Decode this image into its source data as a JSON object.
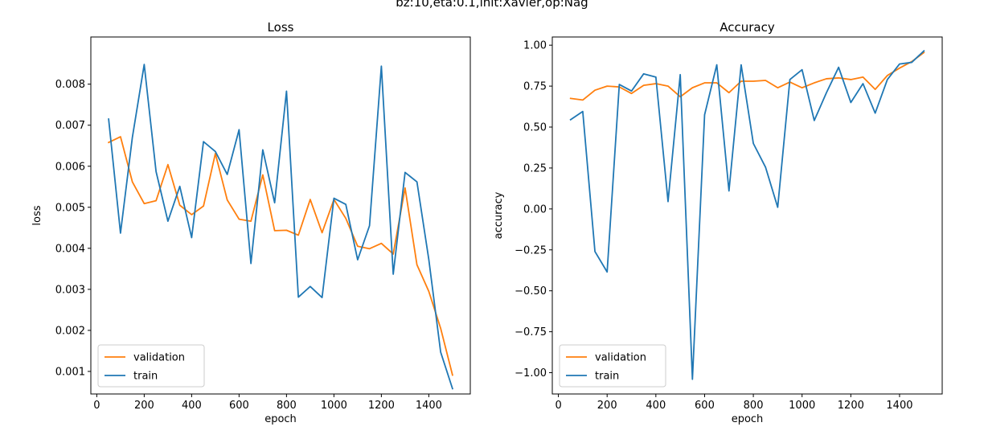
{
  "figure": {
    "suptitle": "bz:10,eta:0.1,init:Xavier,op:Nag"
  },
  "colors": {
    "validation": "#ff7f0e",
    "train": "#1f77b4"
  },
  "chart_data": [
    {
      "type": "line",
      "title": "Loss",
      "xlabel": "epoch",
      "ylabel": "loss",
      "xlim": [
        -25,
        1575
      ],
      "ylim": [
        0.00045,
        0.00915
      ],
      "xticks": [
        0,
        200,
        400,
        600,
        800,
        1000,
        1200,
        1400
      ],
      "yticks": [
        0.001,
        0.002,
        0.003,
        0.004,
        0.005,
        0.006,
        0.007,
        0.008
      ],
      "xtick_labels": [
        "0",
        "200",
        "400",
        "600",
        "800",
        "1000",
        "1200",
        "1400"
      ],
      "ytick_labels": [
        "0.001",
        "0.002",
        "0.003",
        "0.004",
        "0.005",
        "0.006",
        "0.007",
        "0.008"
      ],
      "legend_position": "lower-left",
      "grid": false,
      "x": [
        50,
        100,
        150,
        200,
        250,
        300,
        350,
        400,
        450,
        500,
        550,
        600,
        650,
        700,
        750,
        800,
        850,
        900,
        950,
        1000,
        1050,
        1100,
        1150,
        1200,
        1250,
        1300,
        1350,
        1400,
        1450,
        1500
      ],
      "series": [
        {
          "name": "validation",
          "color": "#ff7f0e",
          "values": [
            0.00658,
            0.00672,
            0.00562,
            0.00509,
            0.00516,
            0.00604,
            0.00505,
            0.00482,
            0.00503,
            0.00631,
            0.00518,
            0.00471,
            0.00466,
            0.00579,
            0.00443,
            0.00444,
            0.00432,
            0.00519,
            0.00438,
            0.00519,
            0.00473,
            0.00405,
            0.00399,
            0.00412,
            0.00386,
            0.00547,
            0.0036,
            0.00295,
            0.00205,
            0.00091
          ]
        },
        {
          "name": "train",
          "color": "#1f77b4",
          "values": [
            0.00715,
            0.00437,
            0.0067,
            0.00848,
            0.00587,
            0.00466,
            0.00551,
            0.00426,
            0.0066,
            0.00636,
            0.0058,
            0.00689,
            0.00363,
            0.0064,
            0.00511,
            0.00783,
            0.00281,
            0.00307,
            0.0028,
            0.00522,
            0.00507,
            0.00372,
            0.00455,
            0.00844,
            0.00337,
            0.00585,
            0.00562,
            0.00373,
            0.00147,
            0.00058
          ]
        }
      ]
    },
    {
      "type": "line",
      "title": "Accuracy",
      "xlabel": "epoch",
      "ylabel": "accuracy",
      "xlim": [
        -25,
        1575
      ],
      "ylim": [
        -1.13,
        1.05
      ],
      "xticks": [
        0,
        200,
        400,
        600,
        800,
        1000,
        1200,
        1400
      ],
      "yticks": [
        -1.0,
        -0.75,
        -0.5,
        -0.25,
        0.0,
        0.25,
        0.5,
        0.75,
        1.0
      ],
      "xtick_labels": [
        "0",
        "200",
        "400",
        "600",
        "800",
        "1000",
        "1200",
        "1400"
      ],
      "ytick_labels": [
        "−1.00",
        "−0.75",
        "−0.50",
        "−0.25",
        "0.00",
        "0.25",
        "0.50",
        "0.75",
        "1.00"
      ],
      "legend_position": "lower-left",
      "grid": false,
      "x": [
        50,
        100,
        150,
        200,
        250,
        300,
        350,
        400,
        450,
        500,
        550,
        600,
        650,
        700,
        750,
        800,
        850,
        900,
        950,
        1000,
        1050,
        1100,
        1150,
        1200,
        1250,
        1300,
        1350,
        1400,
        1450,
        1500
      ],
      "series": [
        {
          "name": "validation",
          "color": "#ff7f0e",
          "values": [
            0.675,
            0.665,
            0.725,
            0.75,
            0.745,
            0.705,
            0.755,
            0.765,
            0.75,
            0.685,
            0.74,
            0.77,
            0.77,
            0.71,
            0.78,
            0.78,
            0.785,
            0.74,
            0.775,
            0.74,
            0.77,
            0.795,
            0.8,
            0.79,
            0.805,
            0.73,
            0.815,
            0.86,
            0.9,
            0.955
          ]
        },
        {
          "name": "train",
          "color": "#1f77b4",
          "values": [
            0.545,
            0.595,
            -0.26,
            -0.385,
            0.76,
            0.72,
            0.825,
            0.805,
            0.045,
            0.82,
            -1.04,
            0.575,
            0.88,
            0.11,
            0.88,
            0.4,
            0.255,
            0.01,
            0.79,
            0.85,
            0.54,
            0.71,
            0.865,
            0.65,
            0.765,
            0.585,
            0.79,
            0.885,
            0.895,
            0.965
          ]
        }
      ]
    }
  ]
}
